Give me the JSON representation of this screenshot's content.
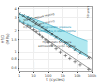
{
  "chart_data": {
    "type": "scatter",
    "xlabel": "t (cycles)",
    "ylabel": "Hf/D\n(MPa)",
    "log": true,
    "grid": true,
    "xlim": [
      1,
      100000
    ],
    "ylim": [
      0.55,
      4.2
    ],
    "xticks": [
      1,
      10,
      100,
      {
        "value": 1000,
        "label": "1k"
      },
      {
        "value": 10000,
        "label": "10k"
      },
      {
        "value": 100000,
        "label": "100k"
      }
    ],
    "yticks": [
      0.6,
      0.8,
      1,
      1.5,
      2,
      3,
      4
    ],
    "series": [
      {
        "type": "band",
        "color": "#b0e8f0",
        "x": [
          1,
          2,
          5,
          10,
          20,
          50,
          100,
          200,
          500,
          1000,
          2000,
          5000,
          10000,
          50000
        ],
        "lower": [
          2.7,
          2.55,
          2.38,
          2.25,
          2.1,
          1.93,
          1.82,
          1.68,
          1.52,
          1.4,
          1.28,
          1.12,
          1.02,
          0.86
        ],
        "upper": [
          3.4,
          3.25,
          3.05,
          2.9,
          2.75,
          2.57,
          2.44,
          2.3,
          2.12,
          2.0,
          1.87,
          1.7,
          1.6,
          1.42
        ]
      },
      {
        "type": "vline",
        "x": 10,
        "color": "#88ccee",
        "line_style": "dashed"
      },
      {
        "type": "scatter",
        "marker": "x",
        "color": "#222222",
        "x": [
          1,
          2,
          4,
          6,
          10,
          15,
          25,
          40,
          70,
          100,
          180,
          350,
          700,
          1500,
          3000,
          7000,
          15000,
          60000
        ],
        "values": [
          3.4,
          3.2,
          3.05,
          2.9,
          2.7,
          2.55,
          2.38,
          2.22,
          2.05,
          1.93,
          1.78,
          1.6,
          1.45,
          1.32,
          1.2,
          1.08,
          0.97,
          0.84
        ]
      },
      {
        "type": "scatter",
        "marker": "+",
        "color": "#555555",
        "x": [
          1,
          2,
          4,
          6,
          10,
          15,
          25,
          40,
          70,
          100,
          180,
          350,
          700,
          1500,
          3000,
          7000,
          15000,
          60000
        ],
        "values": [
          2.7,
          2.52,
          2.35,
          2.22,
          2.05,
          1.92,
          1.76,
          1.62,
          1.48,
          1.38,
          1.25,
          1.12,
          1.0,
          0.9,
          0.82,
          0.74,
          0.67,
          0.58
        ]
      },
      {
        "type": "line",
        "line_style": "solid",
        "color": "#222222",
        "x": [
          1,
          100000
        ],
        "values": [
          3.4,
          0.82
        ]
      },
      {
        "type": "line",
        "line_style": "solid",
        "color": "#555555",
        "x": [
          1,
          100000
        ],
        "values": [
          2.7,
          0.56
        ]
      },
      {
        "type": "line",
        "line_style": "solid",
        "color": "#30aac8",
        "x": [
          1,
          2,
          5,
          10,
          20,
          50,
          100,
          200,
          500,
          1000,
          2000,
          5000,
          10000,
          50000
        ],
        "values": [
          3.4,
          3.25,
          3.05,
          2.9,
          2.75,
          2.57,
          2.44,
          2.3,
          2.12,
          2.0,
          1.87,
          1.7,
          1.6,
          1.42
        ]
      },
      {
        "type": "line",
        "line_style": "solid",
        "color": "#30aac8",
        "x": [
          1,
          2,
          5,
          10,
          20,
          50,
          100,
          200,
          500,
          1000,
          2000,
          5000,
          10000,
          50000
        ],
        "values": [
          2.7,
          2.55,
          2.38,
          2.25,
          2.1,
          1.93,
          1.82,
          1.68,
          1.52,
          1.4,
          1.28,
          1.12,
          1.02,
          0.86
        ]
      }
    ],
    "annotations": [
      {
        "text": "Static pressure testing",
        "x": 1.3,
        "y": 3.1,
        "color": "#222222"
      },
      {
        "text": "Cyclic pressure testing",
        "x": 1.3,
        "y": 2.45,
        "color": "#555555"
      },
      {
        "text": "Hydrostatic pressure\nadmissible in static regime",
        "x": 400,
        "y": 2.1,
        "color": "#1188aa"
      },
      {
        "text": "Hydrostatic pressure\nadmissible in cyclic regime",
        "x": 400,
        "y": 1.3,
        "color": "#444444"
      },
      {
        "text": "50 years",
        "x": 55000,
        "y": 3.6,
        "color": "#333333"
      }
    ]
  }
}
